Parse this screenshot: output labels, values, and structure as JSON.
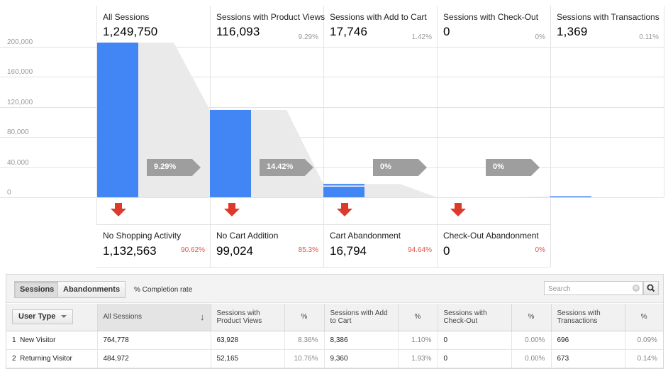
{
  "funnel": {
    "y_axis_ticks": [
      "200,000",
      "160,000",
      "120,000",
      "80,000",
      "40,000",
      "0"
    ],
    "stages": [
      {
        "title": "All Sessions",
        "value": "1,249,750",
        "percent": "",
        "sessions": 1249750
      },
      {
        "title": "Sessions with Product Views",
        "value": "116,093",
        "percent": "9.29%",
        "sessions": 116093
      },
      {
        "title": "Sessions with Add to Cart",
        "value": "17,746",
        "percent": "1.42%",
        "sessions": 17746
      },
      {
        "title": "Sessions with Check-Out",
        "value": "0",
        "percent": "0%",
        "sessions": 0
      },
      {
        "title": "Sessions with Transactions",
        "value": "1,369",
        "percent": "0.11%",
        "sessions": 1369
      }
    ],
    "conversion_arrows": [
      "9.29%",
      "14.42%",
      "0%",
      "0%"
    ],
    "abandonments": [
      {
        "title": "No Shopping Activity",
        "value": "1,132,563",
        "percent": "90.62%"
      },
      {
        "title": "No Cart Addition",
        "value": "99,024",
        "percent": "85.3%"
      },
      {
        "title": "Cart Abandonment",
        "value": "16,794",
        "percent": "94.64%"
      },
      {
        "title": "Check-Out Abandonment",
        "value": "0",
        "percent": "0%"
      }
    ],
    "colors": {
      "bar": "#4285f4",
      "arrow": "#9e9e9e",
      "drop": "#dd3a2b",
      "flow": "#eaeaea"
    }
  },
  "toolbar": {
    "sessions_label": "Sessions",
    "abandonments_label": "Abandonments",
    "completion_rate_label": "% Completion rate",
    "search_placeholder": "Search",
    "clear_icon": "⊗",
    "search_icon": "magnifier-icon"
  },
  "table": {
    "dimension_label": "User Type",
    "headers": [
      "All Sessions",
      "Sessions with Product Views",
      "%",
      "Sessions with Add to Cart",
      "%",
      "Sessions with Check-Out",
      "%",
      "Sessions with Transactions",
      "%"
    ],
    "sort_icon": "↓",
    "rows": [
      {
        "index": "1",
        "user_type": "New Visitor",
        "all_sessions": "764,778",
        "product_views": "63,928",
        "product_views_pct": "8.36%",
        "add_to_cart": "8,386",
        "add_to_cart_pct": "1.10%",
        "check_out": "0",
        "check_out_pct": "0.00%",
        "transactions": "696",
        "transactions_pct": "0.09%"
      },
      {
        "index": "2",
        "user_type": "Returning Visitor",
        "all_sessions": "484,972",
        "product_views": "52,165",
        "product_views_pct": "10.76%",
        "add_to_cart": "9,360",
        "add_to_cart_pct": "1.93%",
        "check_out": "0",
        "check_out_pct": "0.00%",
        "transactions": "673",
        "transactions_pct": "0.14%"
      }
    ]
  }
}
